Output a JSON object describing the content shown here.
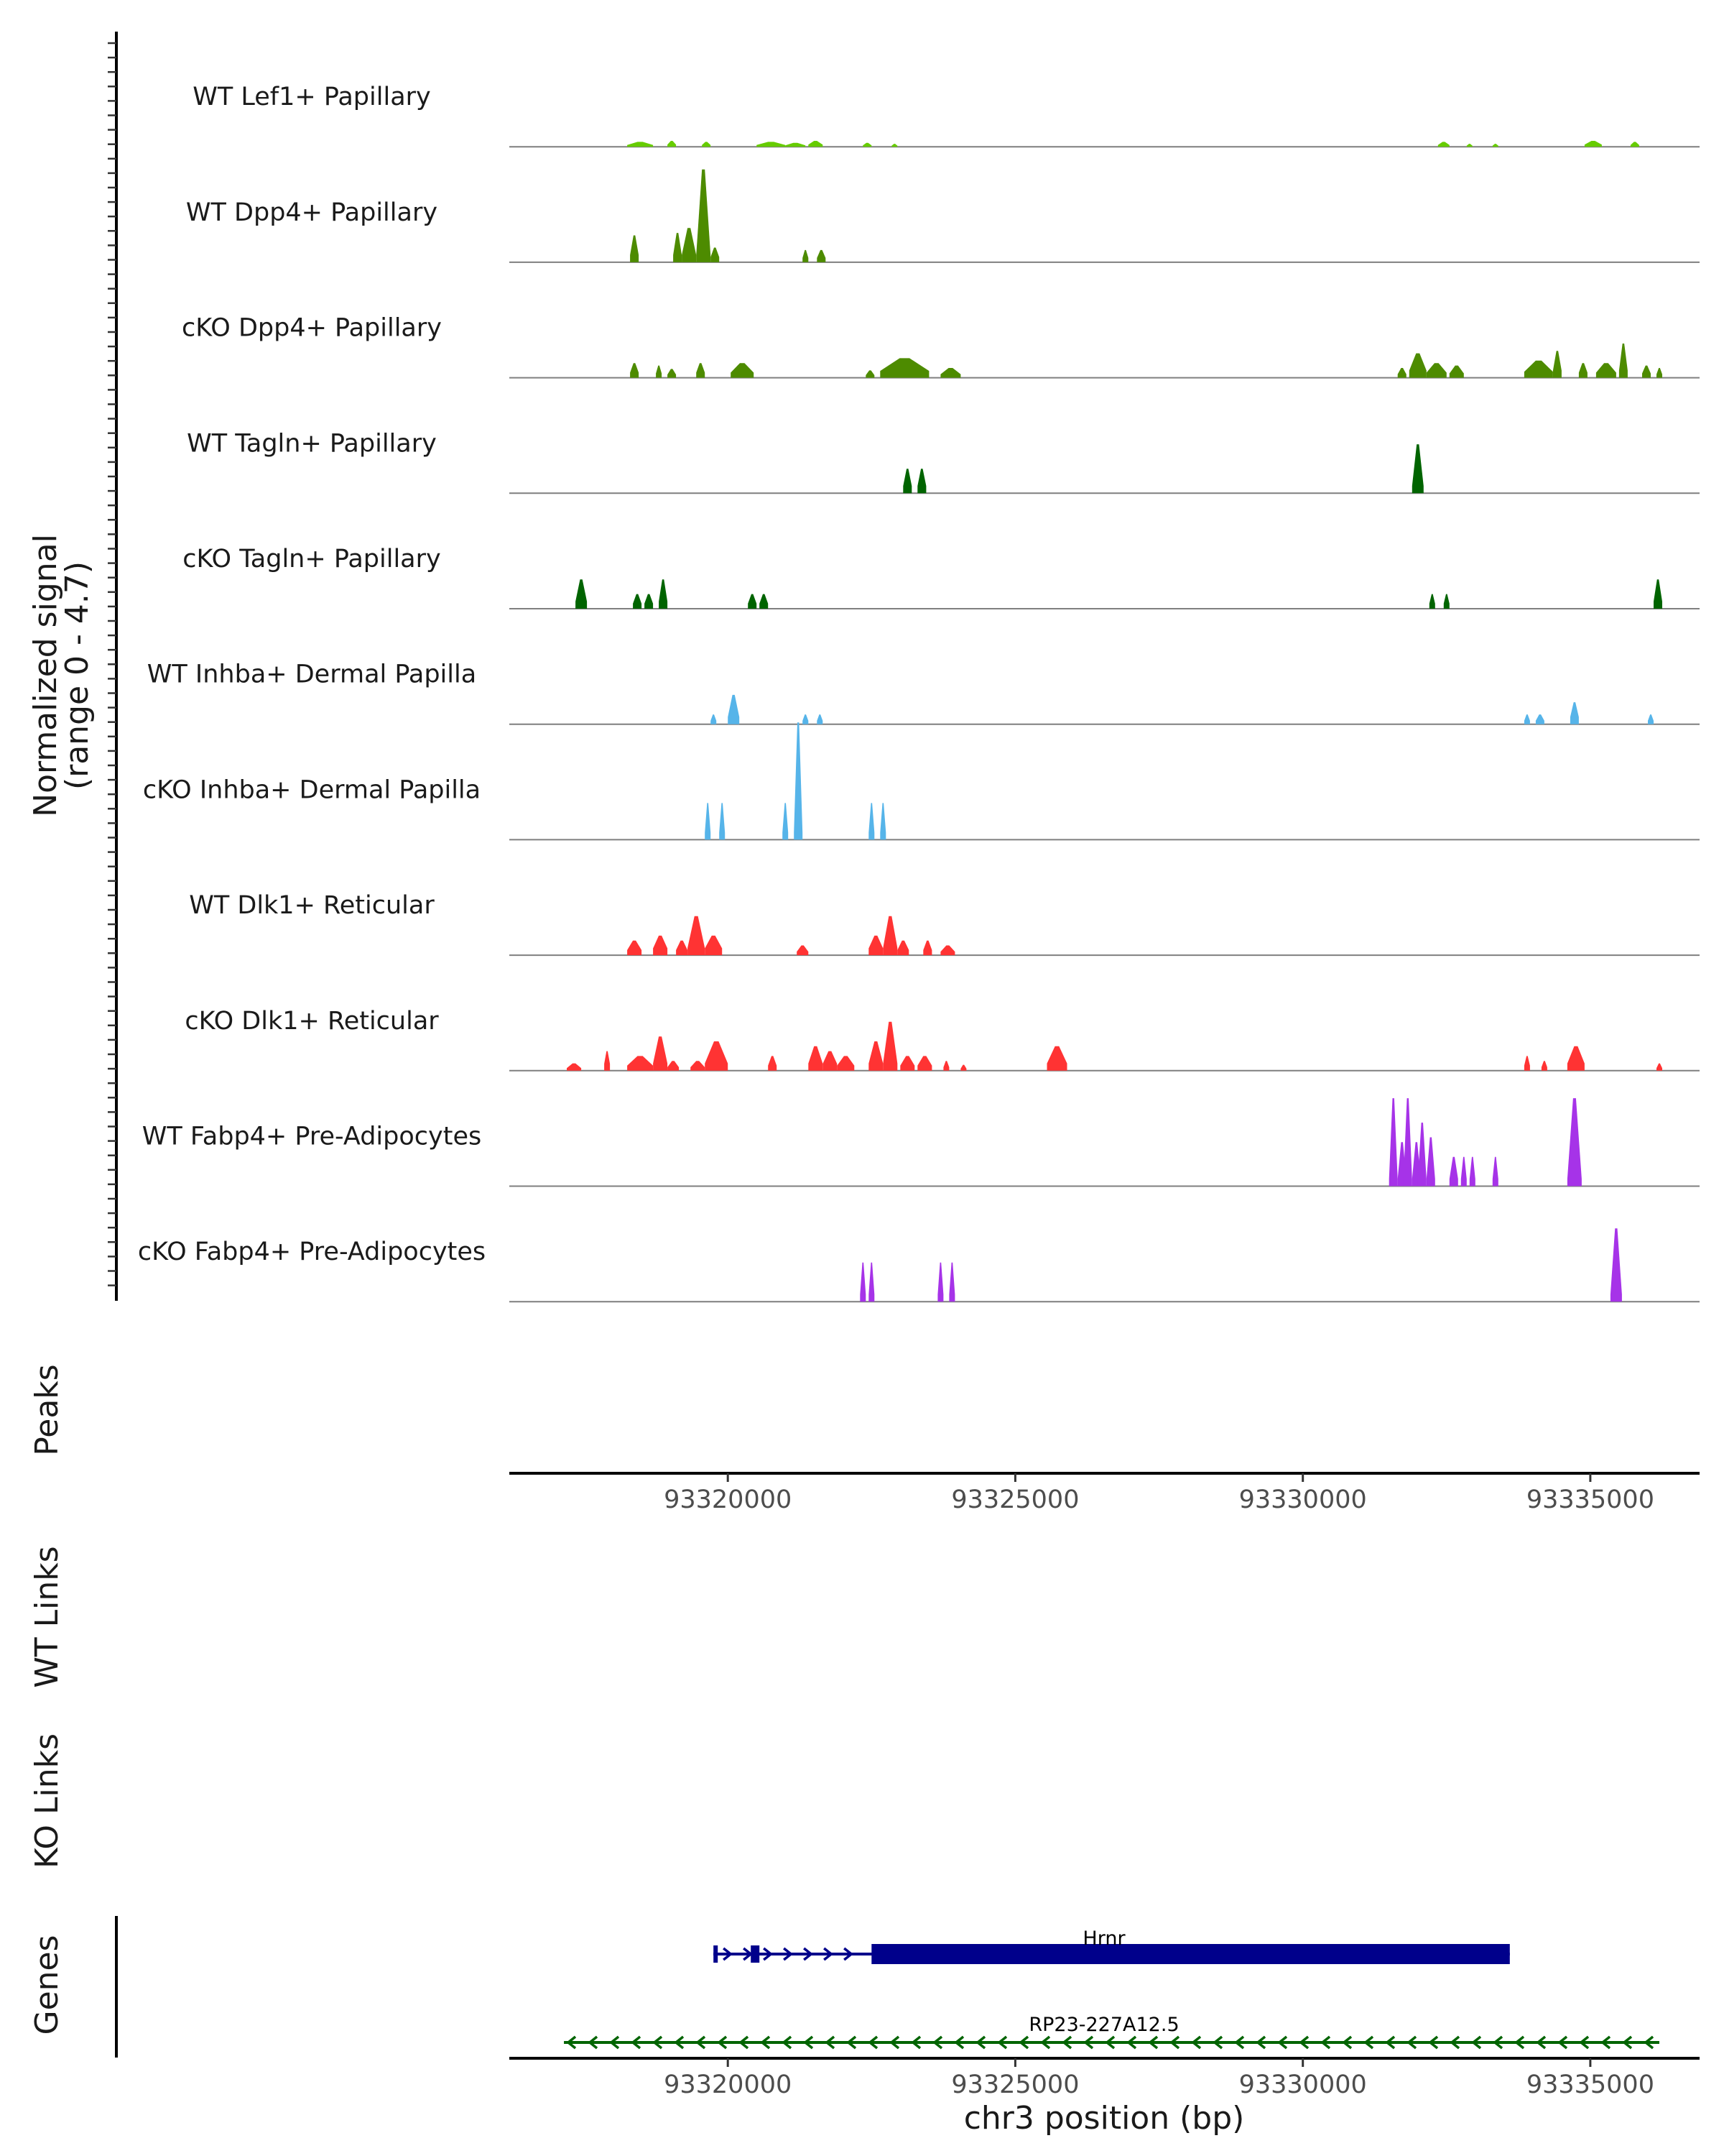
{
  "chart_data": {
    "type": "area",
    "title": "",
    "xlabel": "chr3 position (bp)",
    "ylabel": "Normalized signal\n(range 0 - 4.7)",
    "y_range": [
      0,
      4.7
    ],
    "xlim": [
      93316200,
      93336900
    ],
    "x_ticks": [
      93320000,
      93325000,
      93330000,
      93335000
    ],
    "panel_labels": {
      "peaks": "Peaks",
      "wt_links": "WT Links",
      "ko_links": "KO Links",
      "genes": "Genes"
    },
    "tracks": [
      {
        "name": "WT Lef1+ Papillary",
        "color": "#66CC00",
        "peaks": [
          [
            93318250,
            93318700,
            0.1
          ],
          [
            93318950,
            93319100,
            0.12
          ],
          [
            93319550,
            93319700,
            0.1
          ],
          [
            93320500,
            93321000,
            0.1
          ],
          [
            93321000,
            93321350,
            0.08
          ],
          [
            93321400,
            93321650,
            0.12
          ],
          [
            93322350,
            93322500,
            0.08
          ],
          [
            93322850,
            93322950,
            0.06
          ],
          [
            93332350,
            93332550,
            0.1
          ],
          [
            93332850,
            93332950,
            0.06
          ],
          [
            93333300,
            93333400,
            0.06
          ],
          [
            93334900,
            93335200,
            0.12
          ],
          [
            93335700,
            93335850,
            0.1
          ]
        ]
      },
      {
        "name": "WT Dpp4+ Papillary",
        "color": "#4D8B00",
        "peaks": [
          [
            93318300,
            93318450,
            0.55
          ],
          [
            93319050,
            93319200,
            0.6
          ],
          [
            93319200,
            93319450,
            0.7
          ],
          [
            93319450,
            93319700,
            1.9
          ],
          [
            93319700,
            93319850,
            0.3
          ],
          [
            93321300,
            93321400,
            0.25
          ],
          [
            93321550,
            93321700,
            0.25
          ]
        ]
      },
      {
        "name": "cKO Dpp4+ Papillary",
        "color": "#4D8B00",
        "peaks": [
          [
            93318300,
            93318450,
            0.3
          ],
          [
            93318750,
            93318850,
            0.25
          ],
          [
            93318950,
            93319100,
            0.18
          ],
          [
            93319450,
            93319600,
            0.3
          ],
          [
            93320050,
            93320450,
            0.3
          ],
          [
            93322400,
            93322550,
            0.15
          ],
          [
            93322650,
            93323500,
            0.4
          ],
          [
            93323700,
            93324050,
            0.2
          ],
          [
            93331650,
            93331800,
            0.2
          ],
          [
            93331850,
            93332150,
            0.5
          ],
          [
            93332150,
            93332500,
            0.3
          ],
          [
            93332550,
            93332800,
            0.25
          ],
          [
            93333850,
            93334350,
            0.35
          ],
          [
            93334350,
            93334500,
            0.55
          ],
          [
            93334800,
            93334950,
            0.3
          ],
          [
            93335100,
            93335450,
            0.3
          ],
          [
            93335500,
            93335650,
            0.7
          ],
          [
            93335900,
            93336050,
            0.25
          ],
          [
            93336150,
            93336250,
            0.2
          ]
        ]
      },
      {
        "name": "WT Tagln+ Papillary",
        "color": "#006400",
        "peaks": [
          [
            93323050,
            93323200,
            0.5
          ],
          [
            93323300,
            93323450,
            0.5
          ],
          [
            93331900,
            93332100,
            1.0
          ]
        ]
      },
      {
        "name": "cKO Tagln+ Papillary",
        "color": "#006400",
        "peaks": [
          [
            93317350,
            93317550,
            0.6
          ],
          [
            93318350,
            93318500,
            0.3
          ],
          [
            93318550,
            93318700,
            0.3
          ],
          [
            93318800,
            93318950,
            0.6
          ],
          [
            93320350,
            93320500,
            0.3
          ],
          [
            93320550,
            93320700,
            0.3
          ],
          [
            93332200,
            93332300,
            0.3
          ],
          [
            93332450,
            93332550,
            0.3
          ],
          [
            93336100,
            93336250,
            0.6
          ]
        ]
      },
      {
        "name": "WT Inhba+ Dermal Papilla",
        "color": "#56B4E9",
        "peaks": [
          [
            93319700,
            93319800,
            0.2
          ],
          [
            93320000,
            93320200,
            0.6
          ],
          [
            93321300,
            93321400,
            0.2
          ],
          [
            93321550,
            93321650,
            0.2
          ],
          [
            93333850,
            93333950,
            0.2
          ],
          [
            93334050,
            93334200,
            0.2
          ],
          [
            93334650,
            93334800,
            0.45
          ],
          [
            93336000,
            93336100,
            0.2
          ]
        ]
      },
      {
        "name": "cKO Inhba+ Dermal Papilla",
        "color": "#56B4E9",
        "peaks": [
          [
            93319600,
            93319700,
            0.75
          ],
          [
            93319850,
            93319950,
            0.75
          ],
          [
            93320950,
            93321050,
            0.75
          ],
          [
            93321150,
            93321300,
            2.4
          ],
          [
            93322450,
            93322550,
            0.75
          ],
          [
            93322650,
            93322750,
            0.75
          ]
        ]
      },
      {
        "name": "WT Dlk1+ Reticular",
        "color": "#FF3333",
        "peaks": [
          [
            93318250,
            93318500,
            0.3
          ],
          [
            93318700,
            93318950,
            0.4
          ],
          [
            93319100,
            93319300,
            0.3
          ],
          [
            93319300,
            93319600,
            0.8
          ],
          [
            93319600,
            93319900,
            0.4
          ],
          [
            93321200,
            93321400,
            0.2
          ],
          [
            93322450,
            93322700,
            0.4
          ],
          [
            93322700,
            93322950,
            0.8
          ],
          [
            93322950,
            93323150,
            0.3
          ],
          [
            93323400,
            93323550,
            0.3
          ],
          [
            93323700,
            93323950,
            0.2
          ]
        ]
      },
      {
        "name": "cKO Dlk1+ Reticular",
        "color": "#FF3333",
        "peaks": [
          [
            93317200,
            93317450,
            0.15
          ],
          [
            93317850,
            93317950,
            0.4
          ],
          [
            93318250,
            93318700,
            0.3
          ],
          [
            93318700,
            93318950,
            0.7
          ],
          [
            93318950,
            93319150,
            0.2
          ],
          [
            93319350,
            93319600,
            0.2
          ],
          [
            93319600,
            93320000,
            0.6
          ],
          [
            93320700,
            93320850,
            0.3
          ],
          [
            93321400,
            93321650,
            0.5
          ],
          [
            93321650,
            93321900,
            0.4
          ],
          [
            93321900,
            93322200,
            0.3
          ],
          [
            93322450,
            93322700,
            0.6
          ],
          [
            93322700,
            93322950,
            1.0
          ],
          [
            93323000,
            93323250,
            0.3
          ],
          [
            93323300,
            93323550,
            0.3
          ],
          [
            93323750,
            93323850,
            0.2
          ],
          [
            93324050,
            93324150,
            0.12
          ],
          [
            93325550,
            93325900,
            0.5
          ],
          [
            93333850,
            93333950,
            0.3
          ],
          [
            93334150,
            93334250,
            0.2
          ],
          [
            93334600,
            93334900,
            0.5
          ],
          [
            93336150,
            93336250,
            0.15
          ]
        ]
      },
      {
        "name": "WT Fabp4+ Pre-Adipocytes",
        "color": "#A633E8",
        "peaks": [
          [
            93331500,
            93331650,
            1.8
          ],
          [
            93331650,
            93331800,
            0.9
          ],
          [
            93331750,
            93331900,
            1.8
          ],
          [
            93331900,
            93332050,
            0.9
          ],
          [
            93332000,
            93332150,
            1.3
          ],
          [
            93332150,
            93332300,
            1.0
          ],
          [
            93332550,
            93332700,
            0.6
          ],
          [
            93332750,
            93332850,
            0.6
          ],
          [
            93332900,
            93333000,
            0.6
          ],
          [
            93333300,
            93333400,
            0.6
          ],
          [
            93334600,
            93334850,
            1.8
          ]
        ]
      },
      {
        "name": "cKO Fabp4+ Pre-Adipocytes",
        "color": "#A633E8",
        "peaks": [
          [
            93322300,
            93322400,
            0.8
          ],
          [
            93322450,
            93322550,
            0.8
          ],
          [
            93323650,
            93323750,
            0.8
          ],
          [
            93323850,
            93323950,
            0.8
          ],
          [
            93335350,
            93335550,
            1.5
          ]
        ]
      }
    ],
    "genes": [
      {
        "name": "Hrnr",
        "strand": "+",
        "color": "#00008B",
        "start": 93319750,
        "end": 93333600,
        "cds_start": 93322500,
        "cds_end": 93333600,
        "small_exons": [
          [
            93319750,
            93319800
          ],
          [
            93320400,
            93320550
          ]
        ]
      },
      {
        "name": "RP23-227A12.5",
        "strand": "-",
        "color": "#006400",
        "start": 93317150,
        "end": 93336200
      }
    ]
  }
}
